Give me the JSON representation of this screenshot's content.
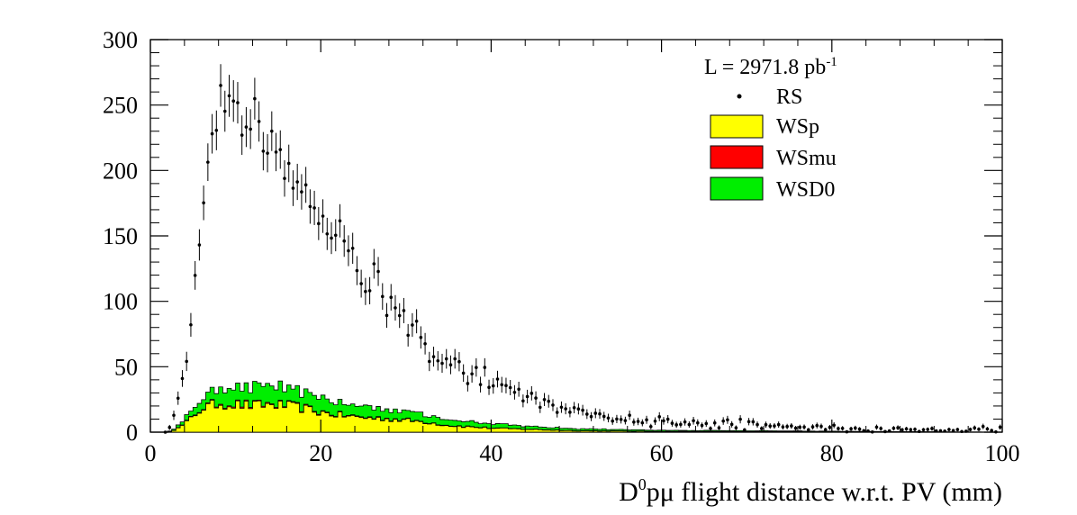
{
  "chart_data": {
    "type": "histogram",
    "xlabel_main": "D",
    "xlabel_sup": "0",
    "xlabel_rest": "pμ flight distance w.r.t. PV (mm)",
    "ylabel": "",
    "xlim": [
      0,
      100
    ],
    "ylim": [
      0,
      300
    ],
    "x_ticks": [
      0,
      20,
      40,
      60,
      80,
      100
    ],
    "x_tick_labels": [
      "0",
      "20",
      "40",
      "60",
      "80",
      "100"
    ],
    "y_ticks": [
      0,
      50,
      100,
      150,
      200,
      250,
      300
    ],
    "y_tick_labels": [
      "0",
      "50",
      "100",
      "150",
      "200",
      "250",
      "300"
    ],
    "grid": false,
    "legend_position": "top-right",
    "luminosity_text": "L = 2971.8 pb",
    "luminosity_sup": "-1",
    "bin_width": 0.5,
    "rs_centers": [
      2.5,
      4.5,
      6.5,
      8.5,
      10.5,
      12.5,
      15,
      18,
      21,
      24,
      27,
      30,
      33,
      36,
      39,
      42,
      45,
      48,
      51,
      54,
      57,
      60,
      64,
      68,
      72,
      76,
      80,
      85,
      90,
      95,
      99.5
    ],
    "rs_values": [
      5,
      55,
      200,
      255,
      250,
      235,
      215,
      185,
      160,
      130,
      110,
      85,
      62,
      52,
      40,
      32,
      24,
      18,
      14,
      11,
      9,
      8,
      7,
      6,
      5,
      4,
      3,
      3,
      2,
      2,
      2
    ],
    "series": [
      {
        "name": "RS",
        "style": "markers",
        "color": "#000000"
      },
      {
        "name": "WSp",
        "style": "filled-step",
        "color": "#ffff00",
        "anchor_x": [
          2,
          3,
          4,
          5,
          6,
          8,
          10,
          12,
          14,
          16,
          18,
          20,
          22,
          25,
          28,
          30,
          32,
          35,
          40,
          45,
          50,
          60,
          100
        ],
        "anchor_y": [
          0,
          2,
          6,
          12,
          18,
          22,
          21,
          20,
          21,
          20,
          18,
          15,
          13,
          11,
          10,
          9,
          8,
          5,
          3,
          2,
          1,
          0.5,
          0
        ]
      },
      {
        "name": "WSmu",
        "style": "filled-step",
        "color": "#ff0000",
        "anchor_x": [
          2,
          5,
          10,
          20,
          30,
          40,
          100
        ],
        "anchor_y": [
          0,
          0.5,
          0.8,
          0.6,
          0.4,
          0.2,
          0
        ]
      },
      {
        "name": "WSD0",
        "style": "filled-step",
        "color": "#00ee00",
        "anchor_x": [
          2,
          4,
          6,
          8,
          10,
          14,
          18,
          22,
          26,
          30,
          35,
          40,
          45,
          50,
          60,
          100
        ],
        "anchor_y": [
          0,
          3,
          8,
          11,
          12,
          13,
          11,
          10,
          8,
          7,
          5,
          3,
          2,
          1.5,
          0.8,
          0
        ]
      }
    ]
  }
}
